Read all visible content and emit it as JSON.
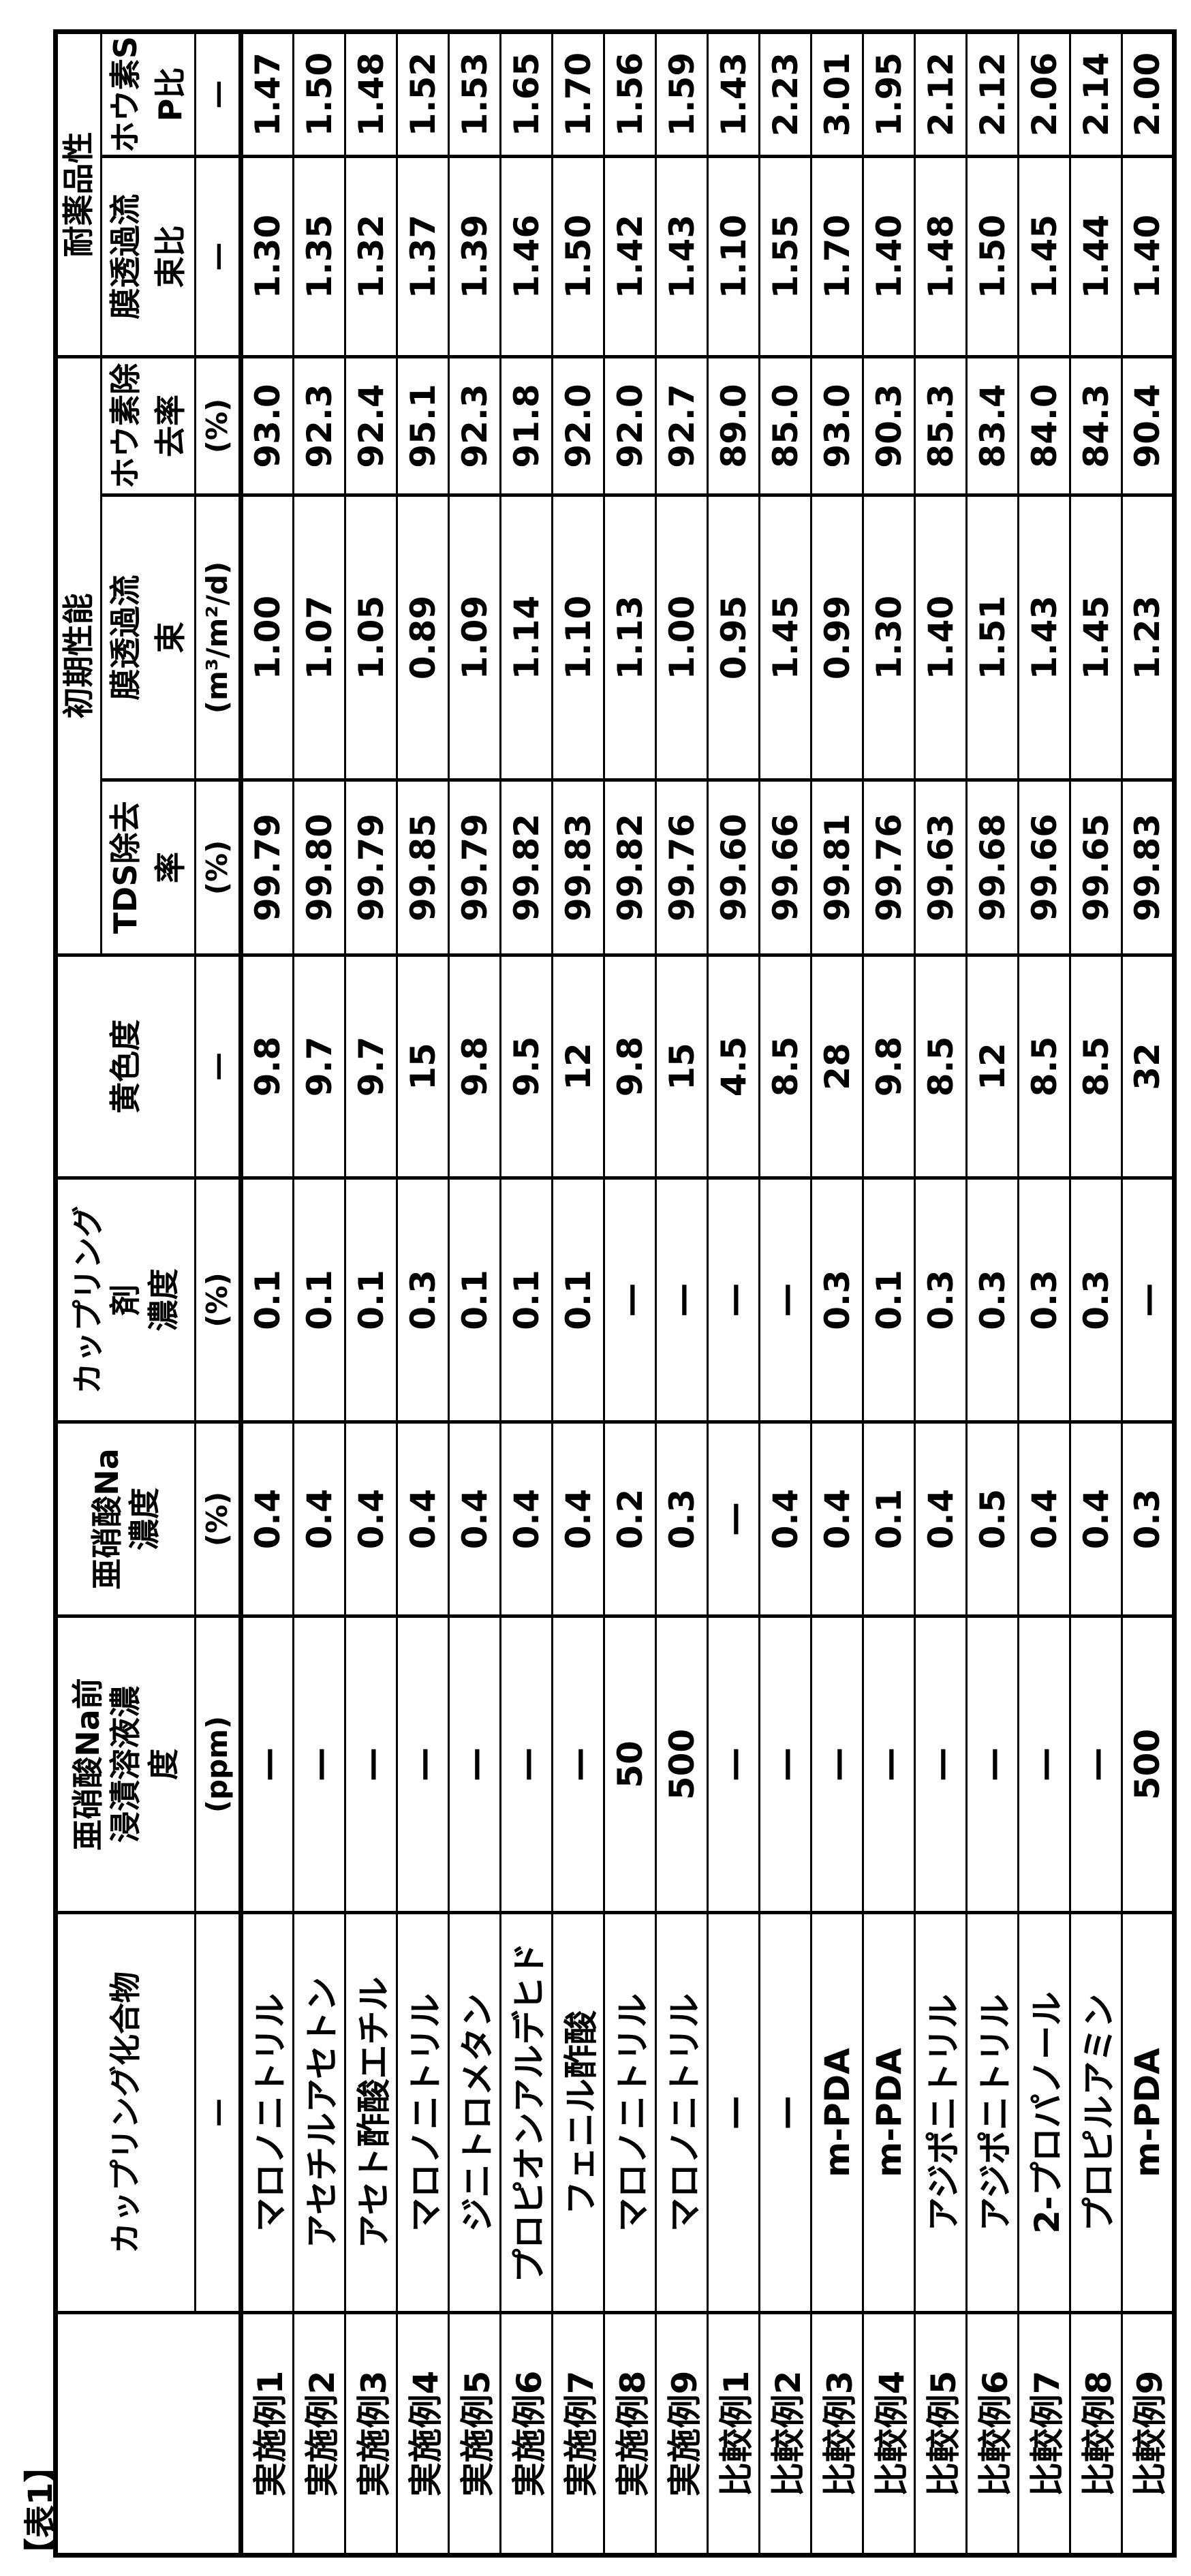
{
  "page_label": "【表1】",
  "table": {
    "corner": "",
    "columns": {
      "compound": {
        "label": "カップリング化合物",
        "unit": "—"
      },
      "presoak": {
        "label": "亜硝酸Na前\n浸漬溶液濃\n度",
        "unit": "(ppm)"
      },
      "na_conc": {
        "label": "亜硝酸Na\n濃度",
        "unit": "(%)"
      },
      "coupling_conc": {
        "label": "カップリング\n剤\n濃度",
        "unit": "(%)"
      },
      "yellowness": {
        "label": "黄色度",
        "unit": "—"
      },
      "groups": [
        {
          "label": "初期性能",
          "children": [
            {
              "label": "TDS除去\n率",
              "unit": "(%)"
            },
            {
              "label": "膜透過流\n束",
              "unit": "(m³/m²/d)"
            },
            {
              "label": "ホウ素除\n去率",
              "unit": "(%)"
            }
          ]
        },
        {
          "label": "耐薬品性",
          "children": [
            {
              "label": "膜透過流\n束比",
              "unit": "—"
            },
            {
              "label": "ホウ素S\nP比",
              "unit": "—"
            }
          ]
        }
      ]
    },
    "rows": [
      {
        "label": "実施例1",
        "cells": [
          "マロノニトリル",
          "—",
          "0.4",
          "0.1",
          "9.8",
          "99.79",
          "1.00",
          "93.0",
          "1.30",
          "1.47"
        ]
      },
      {
        "label": "実施例2",
        "cells": [
          "アセチルアセトン",
          "—",
          "0.4",
          "0.1",
          "9.7",
          "99.80",
          "1.07",
          "92.3",
          "1.35",
          "1.50"
        ]
      },
      {
        "label": "実施例3",
        "cells": [
          "アセト酢酸エチル",
          "—",
          "0.4",
          "0.1",
          "9.7",
          "99.79",
          "1.05",
          "92.4",
          "1.32",
          "1.48"
        ]
      },
      {
        "label": "実施例4",
        "cells": [
          "マロノニトリル",
          "—",
          "0.4",
          "0.3",
          "15",
          "99.85",
          "0.89",
          "95.1",
          "1.37",
          "1.52"
        ]
      },
      {
        "label": "実施例5",
        "cells": [
          "ジニトロメタン",
          "—",
          "0.4",
          "0.1",
          "9.8",
          "99.79",
          "1.09",
          "92.3",
          "1.39",
          "1.53"
        ]
      },
      {
        "label": "実施例6",
        "cells": [
          "プロピオンアルデヒド",
          "—",
          "0.4",
          "0.1",
          "9.5",
          "99.82",
          "1.14",
          "91.8",
          "1.46",
          "1.65"
        ]
      },
      {
        "label": "実施例7",
        "cells": [
          "フェニル酢酸",
          "—",
          "0.4",
          "0.1",
          "12",
          "99.83",
          "1.10",
          "92.0",
          "1.50",
          "1.70"
        ]
      },
      {
        "label": "実施例8",
        "cells": [
          "マロノニトリル",
          "50",
          "0.2",
          "—",
          "9.8",
          "99.82",
          "1.13",
          "92.0",
          "1.42",
          "1.56"
        ]
      },
      {
        "label": "実施例9",
        "cells": [
          "マロノニトリル",
          "500",
          "0.3",
          "—",
          "15",
          "99.76",
          "1.00",
          "92.7",
          "1.43",
          "1.59"
        ]
      },
      {
        "label": "比較例1",
        "cells": [
          "—",
          "—",
          "—",
          "—",
          "4.5",
          "99.60",
          "0.95",
          "89.0",
          "1.10",
          "1.43"
        ]
      },
      {
        "label": "比較例2",
        "cells": [
          "—",
          "—",
          "0.4",
          "—",
          "8.5",
          "99.66",
          "1.45",
          "85.0",
          "1.55",
          "2.23"
        ]
      },
      {
        "label": "比較例3",
        "cells": [
          "m-PDA",
          "—",
          "0.4",
          "0.3",
          "28",
          "99.81",
          "0.99",
          "93.0",
          "1.70",
          "3.01"
        ]
      },
      {
        "label": "比較例4",
        "cells": [
          "m-PDA",
          "—",
          "0.1",
          "0.1",
          "9.8",
          "99.76",
          "1.30",
          "90.3",
          "1.40",
          "1.95"
        ]
      },
      {
        "label": "比較例5",
        "cells": [
          "アジポニトリル",
          "—",
          "0.4",
          "0.3",
          "8.5",
          "99.63",
          "1.40",
          "85.3",
          "1.48",
          "2.12"
        ]
      },
      {
        "label": "比較例6",
        "cells": [
          "アジポニトリル",
          "—",
          "0.5",
          "0.3",
          "12",
          "99.68",
          "1.51",
          "83.4",
          "1.50",
          "2.12"
        ]
      },
      {
        "label": "比較例7",
        "cells": [
          "2-プロパノール",
          "—",
          "0.4",
          "0.3",
          "8.5",
          "99.66",
          "1.43",
          "84.0",
          "1.45",
          "2.06"
        ]
      },
      {
        "label": "比較例8",
        "cells": [
          "プロピルアミン",
          "—",
          "0.4",
          "0.3",
          "8.5",
          "99.65",
          "1.45",
          "84.3",
          "1.44",
          "2.14"
        ]
      },
      {
        "label": "比較例9",
        "cells": [
          "m-PDA",
          "500",
          "0.3",
          "—",
          "32",
          "99.83",
          "1.23",
          "90.4",
          "1.40",
          "2.00"
        ]
      }
    ]
  }
}
